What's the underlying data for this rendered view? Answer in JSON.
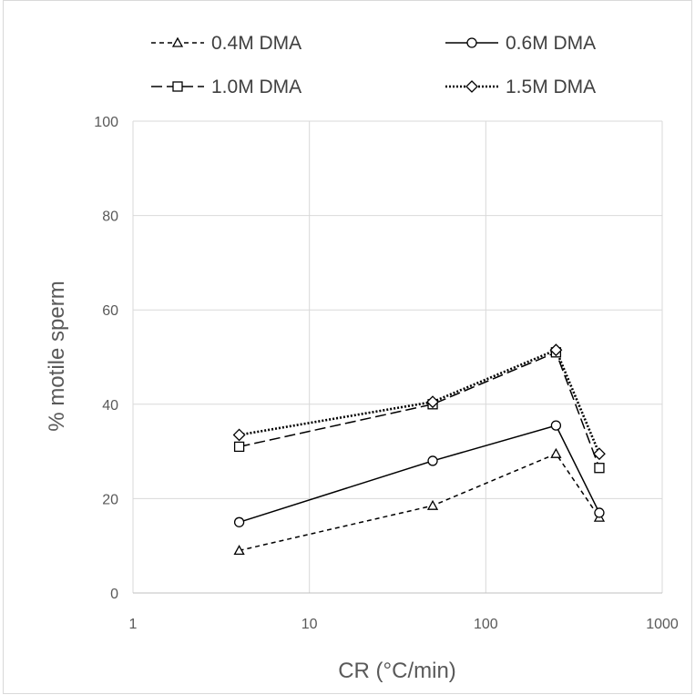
{
  "chart_data": {
    "type": "line",
    "title": "",
    "xlabel": "CR (°C/min)",
    "ylabel": "% motile sperm",
    "xscale": "log",
    "xlim": [
      1,
      1000
    ],
    "ylim": [
      0,
      100
    ],
    "xticks": [
      "1",
      "10",
      "100",
      "1000"
    ],
    "yticks": [
      "0",
      "20",
      "40",
      "60",
      "80",
      "100"
    ],
    "grid": true,
    "legend_position": "top",
    "x": [
      4,
      50,
      250,
      440
    ],
    "series": [
      {
        "name": "0.4M DMA",
        "values": [
          9,
          18.5,
          29.5,
          16
        ],
        "marker": "triangle",
        "dash": "short-dash",
        "color": "#000000"
      },
      {
        "name": "0.6M DMA",
        "values": [
          15,
          28,
          35.5,
          17
        ],
        "marker": "circle",
        "dash": "solid",
        "color": "#000000"
      },
      {
        "name": "1.0M DMA",
        "values": [
          31,
          40,
          51,
          26.5
        ],
        "marker": "square",
        "dash": "long-dash",
        "color": "#000000"
      },
      {
        "name": "1.5M DMA",
        "values": [
          33.5,
          40.5,
          51.5,
          29.5
        ],
        "marker": "diamond",
        "dash": "dotted",
        "color": "#000000"
      }
    ]
  }
}
